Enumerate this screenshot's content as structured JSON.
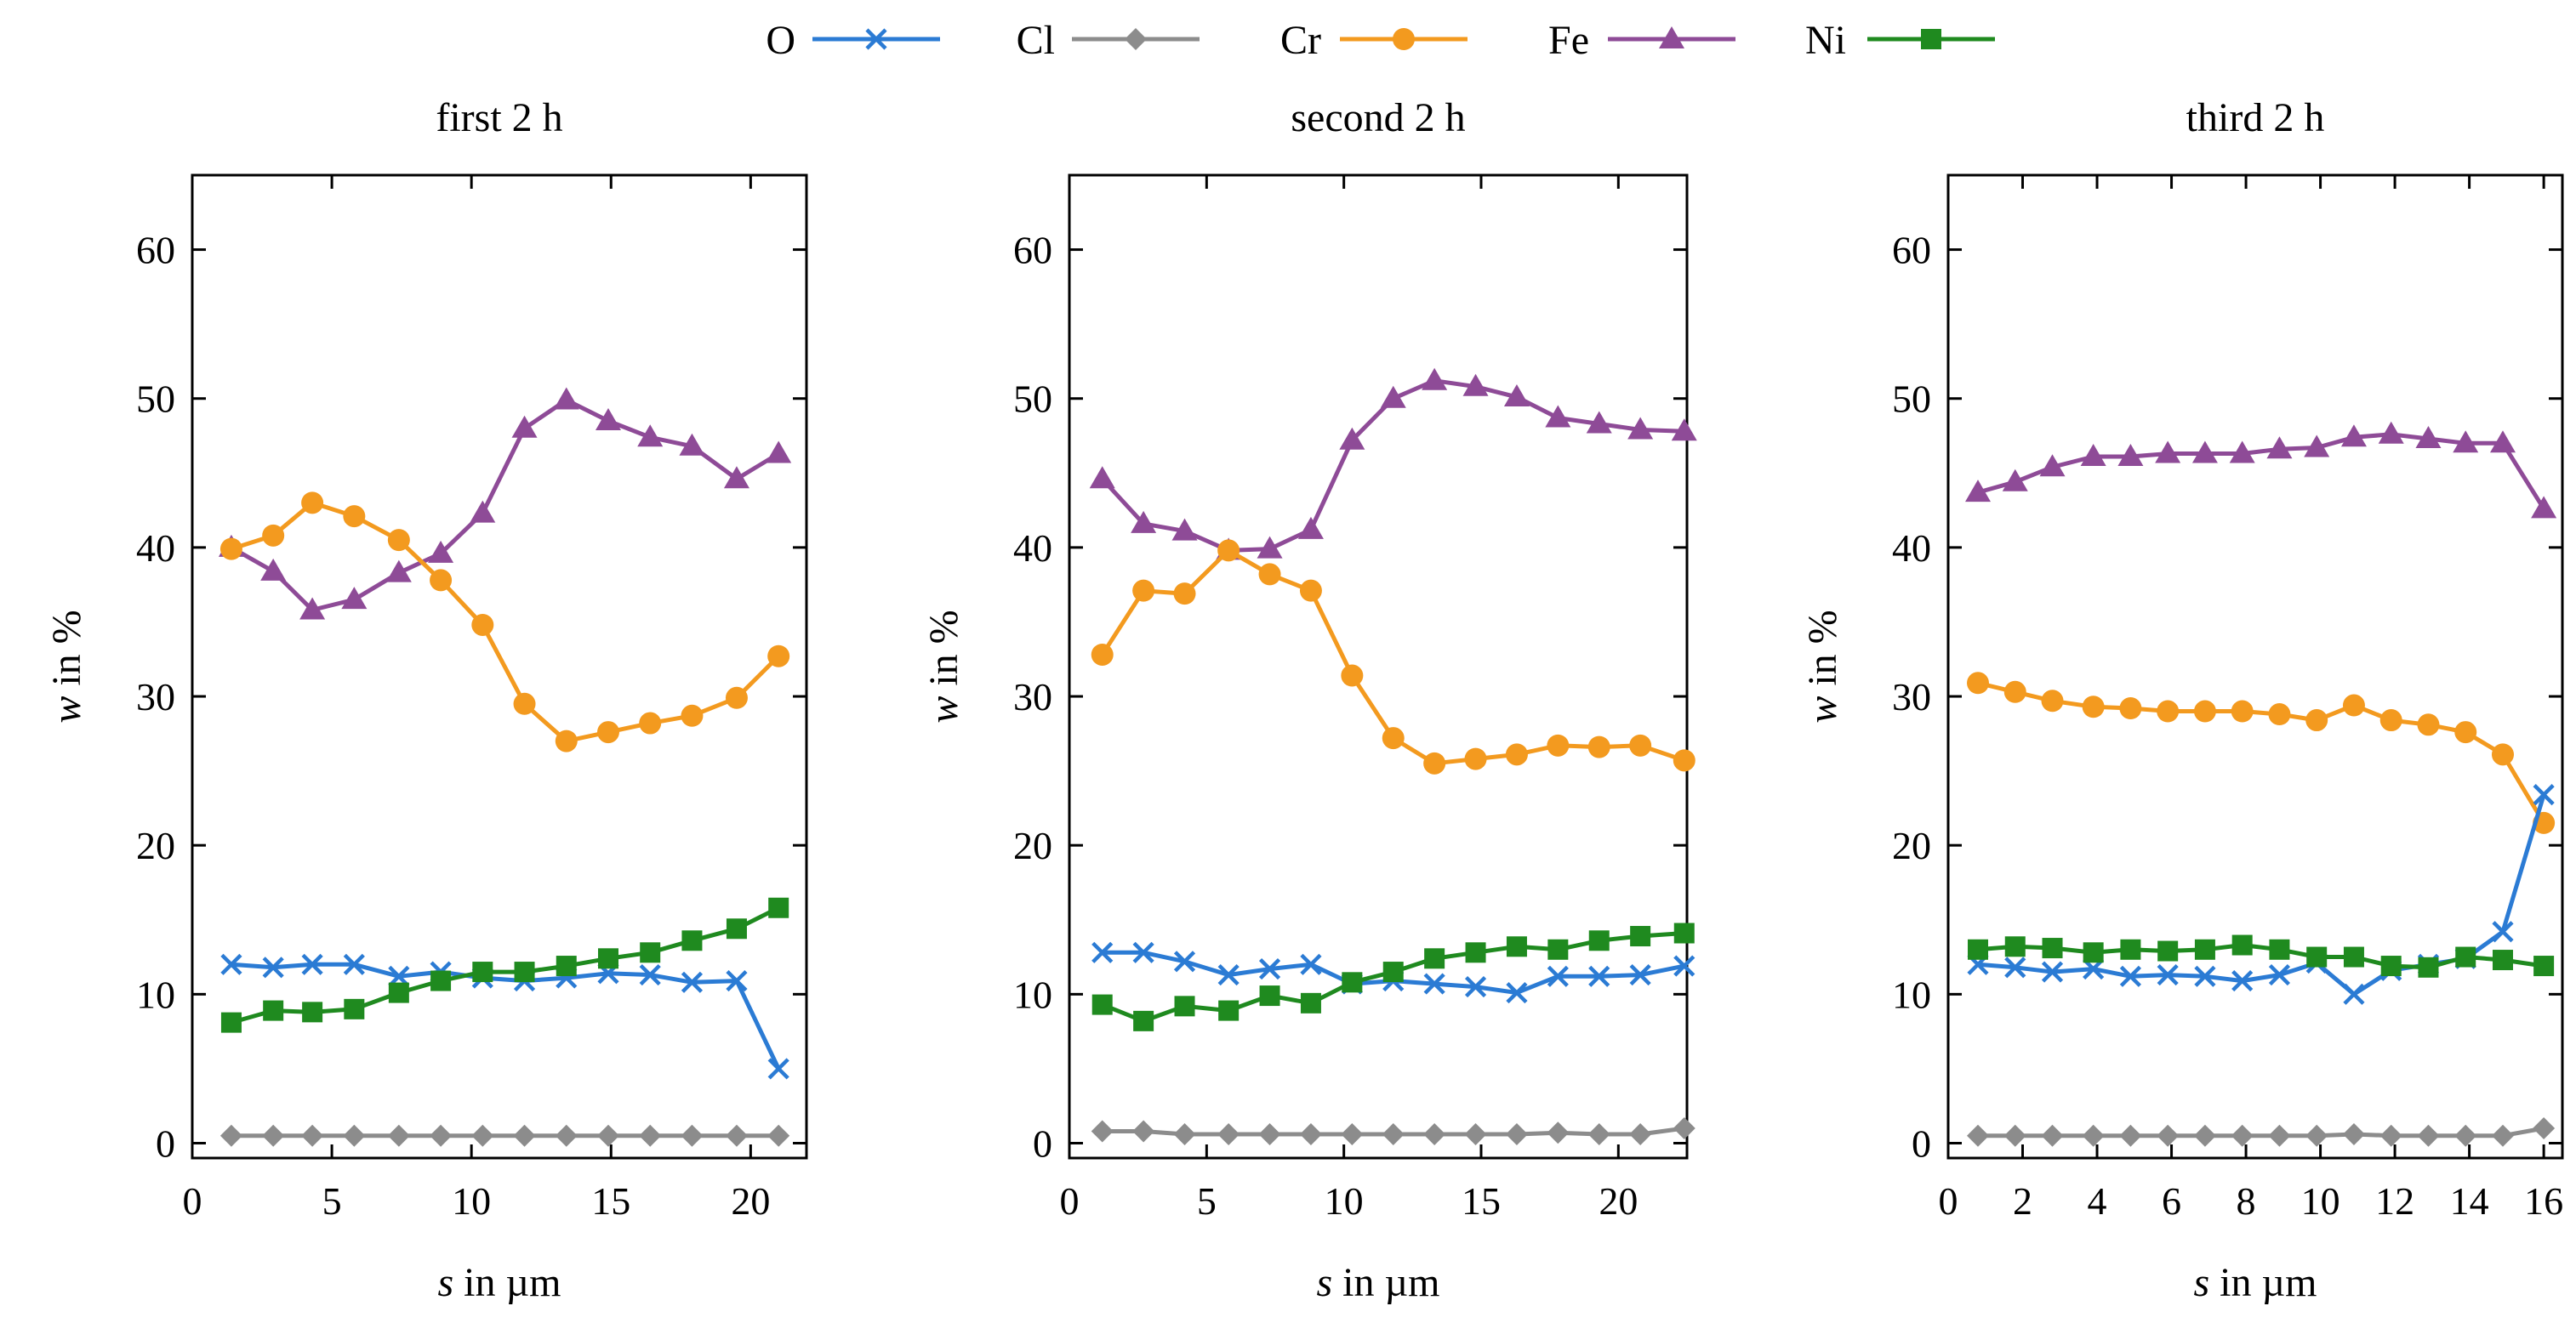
{
  "chart_data": {
    "type": "line",
    "legend": {
      "placement": "top-center",
      "entries": [
        {
          "name": "O",
          "color": "#2b7bd4",
          "marker": "x"
        },
        {
          "name": "Cl",
          "color": "#8c8c8c",
          "marker": "diamond"
        },
        {
          "name": "Cr",
          "color": "#f39a1f",
          "marker": "circle"
        },
        {
          "name": "Fe",
          "color": "#8e4b97",
          "marker": "triangle"
        },
        {
          "name": "Ni",
          "color": "#1f8a1f",
          "marker": "square"
        }
      ]
    },
    "panels": [
      {
        "title": "first 2 h",
        "xlabel_var": "s",
        "xlabel_rest": " in µm",
        "ylabel_var": "w",
        "ylabel_rest": " in %",
        "xlim": [
          0,
          22
        ],
        "ylim": [
          -1,
          65
        ],
        "xticks": [
          0,
          5,
          10,
          15,
          20
        ],
        "xtick_labels": [
          "0",
          "5",
          "10",
          "15",
          "20"
        ],
        "yticks": [
          0,
          10,
          20,
          30,
          40,
          50,
          60
        ],
        "ytick_labels": [
          "0",
          "10",
          "20",
          "30",
          "40",
          "50",
          "60"
        ],
        "x": [
          1.4,
          2.9,
          4.3,
          5.8,
          7.4,
          8.9,
          10.4,
          11.9,
          13.4,
          14.9,
          16.4,
          17.9,
          19.5,
          21.0
        ],
        "series": [
          {
            "name": "O",
            "values": [
              12.0,
              11.8,
              12.0,
              12.0,
              11.2,
              11.5,
              11.1,
              10.9,
              11.1,
              11.4,
              11.3,
              10.8,
              10.9,
              5.0
            ]
          },
          {
            "name": "Cl",
            "values": [
              0.5,
              0.5,
              0.5,
              0.5,
              0.5,
              0.5,
              0.5,
              0.5,
              0.5,
              0.5,
              0.5,
              0.5,
              0.5,
              0.5
            ]
          },
          {
            "name": "Cr",
            "values": [
              39.9,
              40.8,
              43.0,
              42.1,
              40.5,
              37.8,
              34.8,
              29.5,
              27.0,
              27.6,
              28.2,
              28.7,
              29.9,
              32.7
            ]
          },
          {
            "name": "Fe",
            "values": [
              40.0,
              38.4,
              35.8,
              36.5,
              38.3,
              39.6,
              42.3,
              48.0,
              49.9,
              48.5,
              47.4,
              46.8,
              44.6,
              46.3
            ]
          },
          {
            "name": "Ni",
            "values": [
              8.1,
              8.9,
              8.8,
              9.0,
              10.1,
              10.9,
              11.5,
              11.5,
              11.9,
              12.4,
              12.8,
              13.6,
              14.4,
              15.8
            ]
          }
        ]
      },
      {
        "title": "second 2 h",
        "xlabel_var": "s",
        "xlabel_rest": " in µm",
        "ylabel_var": "w",
        "ylabel_rest": " in %",
        "xlim": [
          0,
          22.5
        ],
        "ylim": [
          -1,
          65
        ],
        "xticks": [
          0,
          5,
          10,
          15,
          20
        ],
        "xtick_labels": [
          "0",
          "5",
          "10",
          "15",
          "20"
        ],
        "yticks": [
          0,
          10,
          20,
          30,
          40,
          50,
          60
        ],
        "ytick_labels": [
          "0",
          "10",
          "20",
          "30",
          "40",
          "50",
          "60"
        ],
        "x": [
          1.2,
          2.7,
          4.2,
          5.8,
          7.3,
          8.8,
          10.3,
          11.8,
          13.3,
          14.8,
          16.3,
          17.8,
          19.3,
          20.8,
          22.4
        ],
        "series": [
          {
            "name": "O",
            "values": [
              12.8,
              12.8,
              12.2,
              11.3,
              11.7,
              12.0,
              10.7,
              10.9,
              10.7,
              10.5,
              10.1,
              11.2,
              11.2,
              11.3,
              11.9
            ]
          },
          {
            "name": "Cl",
            "values": [
              0.8,
              0.8,
              0.6,
              0.6,
              0.6,
              0.6,
              0.6,
              0.6,
              0.6,
              0.6,
              0.6,
              0.7,
              0.6,
              0.6,
              1.0
            ]
          },
          {
            "name": "Cr",
            "values": [
              32.8,
              37.1,
              36.9,
              39.8,
              38.2,
              37.1,
              31.4,
              27.2,
              25.5,
              25.8,
              26.1,
              26.7,
              26.6,
              26.7,
              25.7
            ]
          },
          {
            "name": "Fe",
            "values": [
              44.6,
              41.6,
              41.1,
              39.8,
              39.9,
              41.2,
              47.2,
              50.0,
              51.2,
              50.8,
              50.1,
              48.7,
              48.3,
              47.9,
              47.8
            ]
          },
          {
            "name": "Ni",
            "values": [
              9.3,
              8.2,
              9.2,
              8.9,
              9.9,
              9.4,
              10.8,
              11.5,
              12.4,
              12.8,
              13.2,
              13.0,
              13.6,
              13.9,
              14.1
            ]
          }
        ]
      },
      {
        "title": "third 2 h",
        "xlabel_var": "s",
        "xlabel_rest": " in µm",
        "ylabel_var": "w",
        "ylabel_rest": " in %",
        "xlim": [
          0,
          16.5
        ],
        "ylim": [
          -1,
          65
        ],
        "xticks": [
          0,
          2,
          4,
          6,
          8,
          10,
          12,
          14,
          16
        ],
        "xtick_labels": [
          "0",
          "2",
          "4",
          "6",
          "8",
          "10",
          "12",
          "14",
          "16"
        ],
        "yticks": [
          0,
          10,
          20,
          30,
          40,
          50,
          60
        ],
        "ytick_labels": [
          "0",
          "10",
          "20",
          "30",
          "40",
          "50",
          "60"
        ],
        "x": [
          0.8,
          1.8,
          2.8,
          3.9,
          4.9,
          5.9,
          6.9,
          7.9,
          8.9,
          9.9,
          10.9,
          11.9,
          12.9,
          13.9,
          14.9,
          16.0
        ],
        "series": [
          {
            "name": "O",
            "values": [
              12.0,
              11.8,
              11.5,
              11.7,
              11.2,
              11.3,
              11.2,
              10.9,
              11.3,
              12.1,
              10.0,
              11.6,
              12.0,
              12.4,
              14.2,
              23.4
            ]
          },
          {
            "name": "Cl",
            "values": [
              0.5,
              0.5,
              0.5,
              0.5,
              0.5,
              0.5,
              0.5,
              0.5,
              0.5,
              0.5,
              0.6,
              0.5,
              0.5,
              0.5,
              0.5,
              1.0
            ]
          },
          {
            "name": "Cr",
            "values": [
              30.9,
              30.3,
              29.7,
              29.3,
              29.2,
              29.0,
              29.0,
              29.0,
              28.8,
              28.4,
              29.4,
              28.4,
              28.1,
              27.6,
              26.1,
              21.5
            ]
          },
          {
            "name": "Fe",
            "values": [
              43.7,
              44.4,
              45.4,
              46.1,
              46.1,
              46.3,
              46.3,
              46.3,
              46.6,
              46.7,
              47.4,
              47.6,
              47.3,
              47.0,
              47.0,
              42.6
            ]
          },
          {
            "name": "Ni",
            "values": [
              13.0,
              13.2,
              13.1,
              12.8,
              13.0,
              12.9,
              13.0,
              13.3,
              13.0,
              12.5,
              12.5,
              11.9,
              11.8,
              12.5,
              12.3,
              11.9
            ]
          }
        ]
      }
    ]
  }
}
